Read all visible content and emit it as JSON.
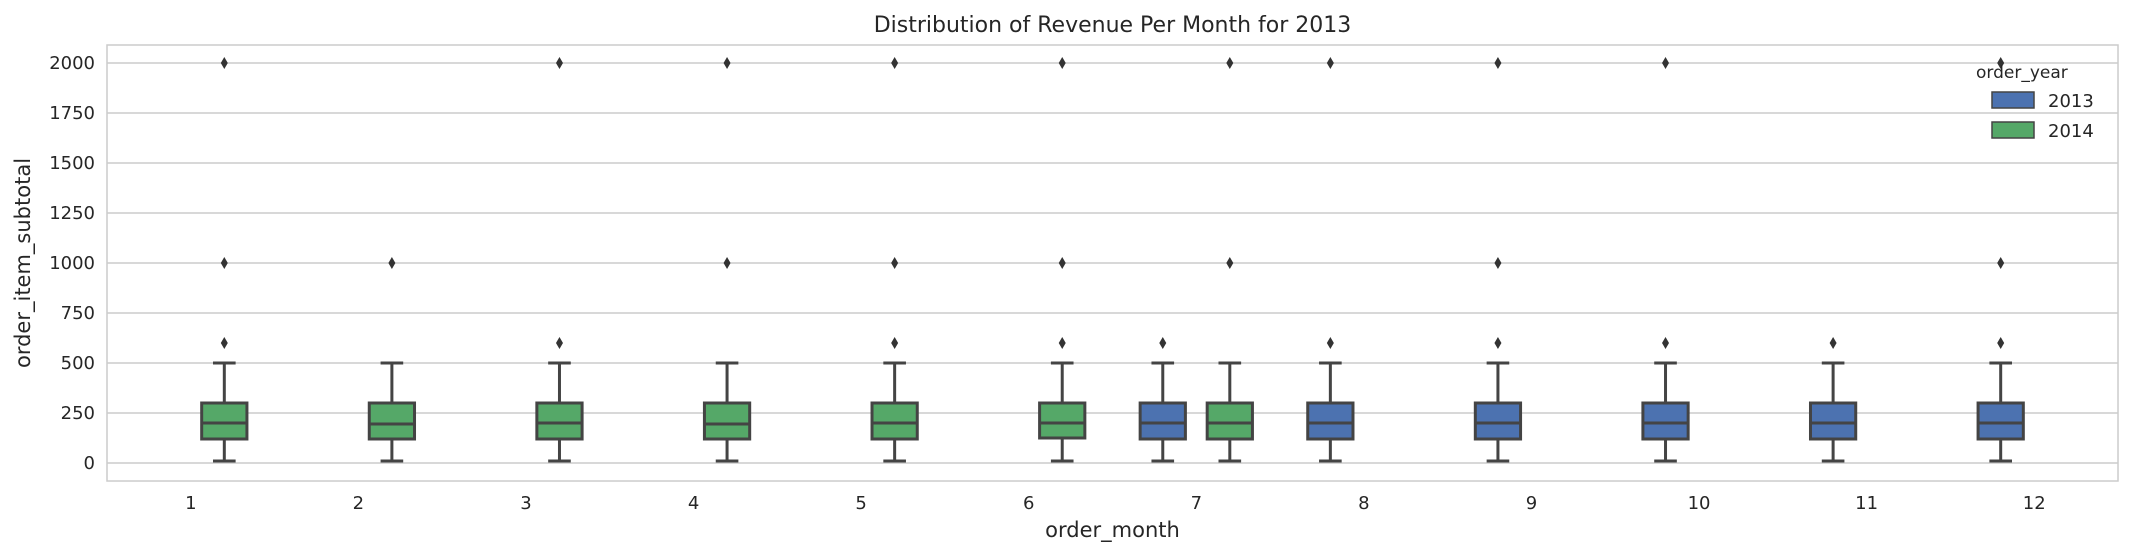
{
  "chart_data": {
    "type": "box",
    "title": "Distribution of Revenue Per Month for 2013",
    "xlabel": "order_month",
    "ylabel": "order_item_subtotal",
    "ylim": [
      -90,
      2090
    ],
    "yticks": [
      0,
      250,
      500,
      750,
      1000,
      1250,
      1500,
      1750,
      2000
    ],
    "categories": [
      "1",
      "2",
      "3",
      "4",
      "5",
      "6",
      "7",
      "8",
      "9",
      "10",
      "11",
      "12"
    ],
    "grid": "horizontal",
    "legend": {
      "title": "order_year",
      "placement": "top-right",
      "entries": [
        {
          "label": "2013",
          "color": "#4c72b0"
        },
        {
          "label": "2014",
          "color": "#55a868"
        }
      ]
    },
    "series": [
      {
        "name": "2013",
        "color": "#4c72b0",
        "boxes": [
          {
            "month": "7",
            "whisker_low": 10,
            "q1": 120,
            "median": 200,
            "q3": 300,
            "whisker_high": 500,
            "outliers": [
              600
            ]
          },
          {
            "month": "8",
            "whisker_low": 10,
            "q1": 120,
            "median": 200,
            "q3": 300,
            "whisker_high": 500,
            "outliers": [
              600,
              2000
            ]
          },
          {
            "month": "9",
            "whisker_low": 10,
            "q1": 120,
            "median": 200,
            "q3": 300,
            "whisker_high": 500,
            "outliers": [
              600,
              1000,
              2000
            ]
          },
          {
            "month": "10",
            "whisker_low": 10,
            "q1": 120,
            "median": 200,
            "q3": 300,
            "whisker_high": 500,
            "outliers": [
              600,
              2000
            ]
          },
          {
            "month": "11",
            "whisker_low": 10,
            "q1": 120,
            "median": 200,
            "q3": 300,
            "whisker_high": 500,
            "outliers": [
              600
            ]
          },
          {
            "month": "12",
            "whisker_low": 10,
            "q1": 120,
            "median": 200,
            "q3": 300,
            "whisker_high": 500,
            "outliers": [
              600,
              1000,
              2000
            ]
          }
        ]
      },
      {
        "name": "2014",
        "color": "#55a868",
        "boxes": [
          {
            "month": "1",
            "whisker_low": 10,
            "q1": 120,
            "median": 200,
            "q3": 300,
            "whisker_high": 500,
            "outliers": [
              600,
              1000,
              2000
            ]
          },
          {
            "month": "2",
            "whisker_low": 10,
            "q1": 120,
            "median": 195,
            "q3": 300,
            "whisker_high": 500,
            "outliers": [
              1000
            ]
          },
          {
            "month": "3",
            "whisker_low": 10,
            "q1": 120,
            "median": 200,
            "q3": 300,
            "whisker_high": 500,
            "outliers": [
              600,
              2000
            ]
          },
          {
            "month": "4",
            "whisker_low": 10,
            "q1": 120,
            "median": 195,
            "q3": 300,
            "whisker_high": 500,
            "outliers": [
              1000,
              2000
            ]
          },
          {
            "month": "5",
            "whisker_low": 10,
            "q1": 120,
            "median": 200,
            "q3": 300,
            "whisker_high": 500,
            "outliers": [
              600,
              1000,
              2000
            ]
          },
          {
            "month": "6",
            "whisker_low": 10,
            "q1": 125,
            "median": 200,
            "q3": 300,
            "whisker_high": 500,
            "outliers": [
              600,
              1000,
              2000
            ]
          },
          {
            "month": "7",
            "whisker_low": 10,
            "q1": 120,
            "median": 200,
            "q3": 300,
            "whisker_high": 500,
            "outliers": [
              1000,
              2000
            ]
          }
        ]
      }
    ]
  }
}
